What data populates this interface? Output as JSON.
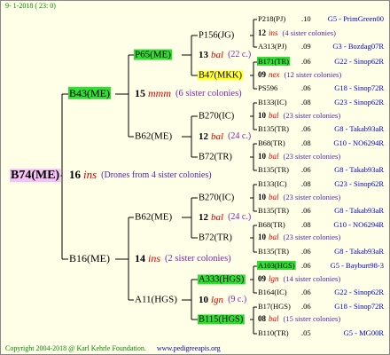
{
  "header": {
    "date": "9- 1-2018 ( 23: 0)"
  },
  "footer": {
    "copyright": "Copyright 2004-2018 @ Karl Kehrle Foundation.",
    "url": "www.pedigreeapis.org"
  },
  "queens": [
    {
      "name": "B74(ME)",
      "color": "#f4c2f4"
    },
    {
      "name": "B43(ME)",
      "color": "#33dd33"
    },
    {
      "name": "B16(ME)"
    },
    {
      "name": "P65(ME)",
      "color": "#33dd33"
    },
    {
      "name": "B62(ME)"
    },
    {
      "name": "B62(ME)"
    },
    {
      "name": "A11(HGS)"
    },
    {
      "name": "P156(JG)"
    },
    {
      "name": "B47(MKK)",
      "color": "#ffff33"
    },
    {
      "name": "B270(IC)"
    },
    {
      "name": "B72(TR)"
    },
    {
      "name": "B270(IC)"
    },
    {
      "name": "B72(TR)"
    },
    {
      "name": "A333(HGS)",
      "color": "#33dd33"
    },
    {
      "name": "B115(HGS)",
      "color": "#33dd33"
    }
  ],
  "drones": [
    {
      "num": "16",
      "race": "ins",
      "note": "(Drones from 4 sister colonies)"
    },
    {
      "num": "15",
      "race": "mmm",
      "note": "(6 sister colonies)"
    },
    {
      "num": "14",
      "race": "ins",
      "note": "(2 sister colonies)"
    },
    {
      "num": "13",
      "race": "bal",
      "note": "(22 c.)"
    },
    {
      "num": "12",
      "race": "bal",
      "note": "(24 c.)"
    },
    {
      "num": "12",
      "race": "bal",
      "note": "(24 c.)"
    },
    {
      "num": "10",
      "race": "lgn",
      "note": "(9 c.)"
    }
  ],
  "rows": [
    {
      "name": "P218(PJ)",
      "value": ".10",
      "ref": "G5 - PrimGreen00"
    },
    {
      "num": "12",
      "race": "ins",
      "note": "(4 sister colonies)"
    },
    {
      "name": "A313(PJ)",
      "value": ".09",
      "ref": "G3 - Bozdag07R"
    },
    {
      "name": "B171(TR)",
      "value": ".06",
      "ref": "G22 - Sinop62R",
      "color": "#33dd33"
    },
    {
      "num": "09",
      "race": "nex",
      "note": "(12 sister colonies)"
    },
    {
      "name": "PS596",
      "value": ".06",
      "ref": "G18 - Sinop72R"
    },
    {
      "name": "B133(IC)",
      "value": ".08",
      "ref": "G23 - Sinop62R"
    },
    {
      "num": "10",
      "race": "bal",
      "note": "(23 sister colonies)"
    },
    {
      "name": "B135(TR)",
      "value": ".06",
      "ref": "G8 - Takab93aR"
    },
    {
      "name": "B68(TR)",
      "value": ".08",
      "ref": "G10 - NO6294R"
    },
    {
      "num": "10",
      "race": "bal",
      "note": "(23 sister colonies)"
    },
    {
      "name": "B135(TR)",
      "value": ".06",
      "ref": "G8 - Takab93aR"
    },
    {
      "name": "B133(IC)",
      "value": ".08",
      "ref": "G23 - Sinop62R"
    },
    {
      "num": "10",
      "race": "bal",
      "note": "(23 sister colonies)"
    },
    {
      "name": "B135(TR)",
      "value": ".06",
      "ref": "G8 - Takab93aR"
    },
    {
      "name": "B68(TR)",
      "value": ".08",
      "ref": "G10 - NO6294R"
    },
    {
      "num": "10",
      "race": "bal",
      "note": "(23 sister colonies)"
    },
    {
      "name": "B135(TR)",
      "value": ".06",
      "ref": "G8 - Takab93aR"
    },
    {
      "name": "A103(HGS)",
      "value": ".06",
      "ref": "G5 - Bayburt98-3",
      "color": "#33dd33"
    },
    {
      "num": "09",
      "race": "lgn",
      "note": "(14 sister colonies)"
    },
    {
      "name": "B164(IC)",
      "value": ".06",
      "ref": "G22 - Sinop62R"
    },
    {
      "name": "B17(HGS)",
      "value": ".06",
      "ref": "G18 - Sinop72R"
    },
    {
      "num": "08",
      "race": "bal",
      "note": "(15 sister colonies)"
    },
    {
      "name": "B110(TR)",
      "value": ".05",
      "ref": "G5 - MG00R"
    }
  ]
}
